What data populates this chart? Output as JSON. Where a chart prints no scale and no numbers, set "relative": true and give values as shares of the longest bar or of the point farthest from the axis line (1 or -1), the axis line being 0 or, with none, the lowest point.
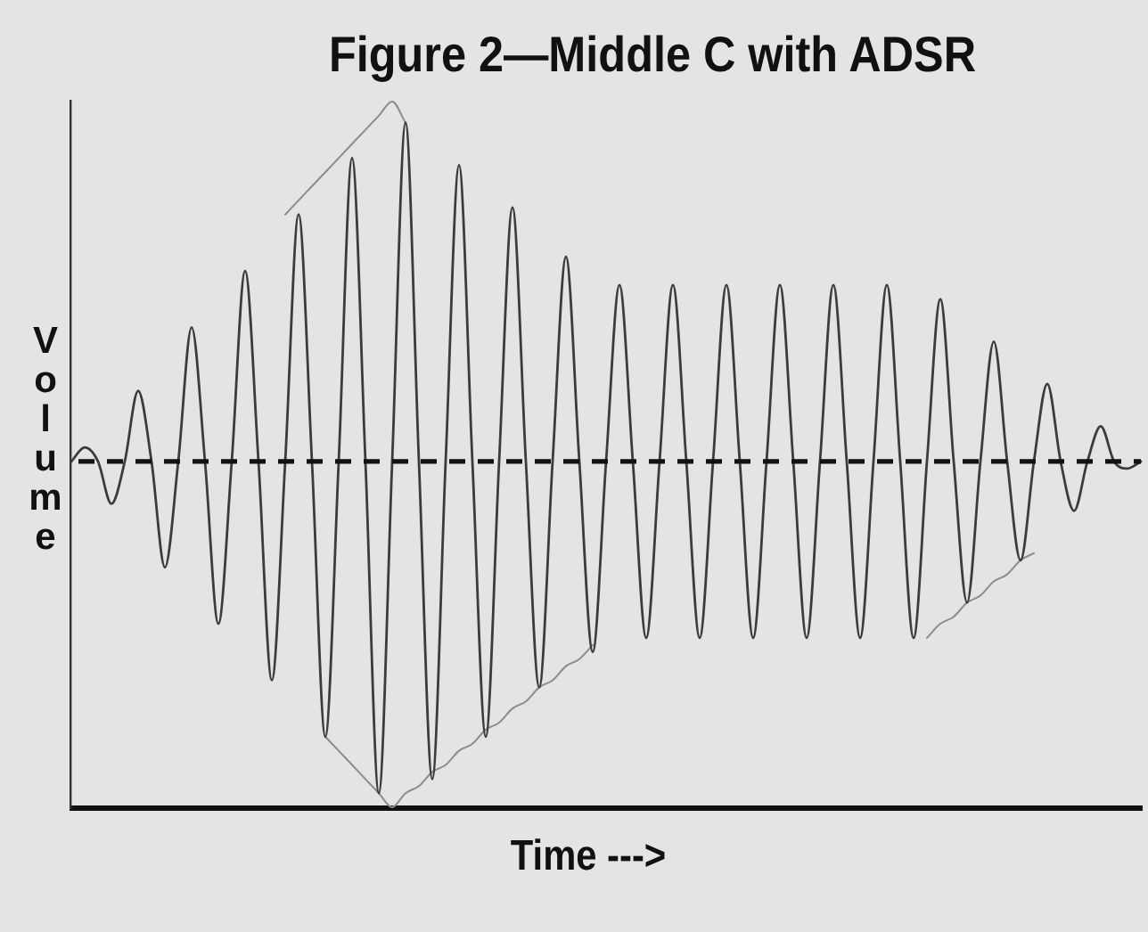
{
  "chart_data": {
    "type": "line",
    "title": "Figure 2—Middle C with ADSR",
    "xlabel": "Time --->",
    "ylabel": "Volume",
    "relative": true,
    "marker": "none",
    "grid": false,
    "legend": false,
    "categories": [
      null,
      null,
      null,
      null,
      null,
      null,
      null,
      null,
      null,
      null,
      null,
      null,
      null,
      null,
      null,
      null,
      null,
      null,
      null,
      null,
      null,
      null,
      null,
      null,
      null,
      null,
      null,
      null,
      null,
      null,
      null,
      null,
      null,
      null,
      null,
      null,
      null,
      null,
      null,
      null,
      null,
      null,
      null,
      null,
      null,
      null,
      null,
      null,
      null,
      null,
      null,
      null,
      null,
      null,
      null,
      null,
      null,
      null,
      null,
      null,
      null,
      null,
      null,
      null,
      null,
      null,
      null,
      null,
      null,
      null,
      null,
      null,
      null,
      null,
      null,
      null,
      null,
      null,
      null,
      null,
      null
    ],
    "series": [
      {
        "color": "#3c3c3c",
        "values": [
          0.49,
          0.51,
          0.49,
          0.43,
          0.49,
          0.59,
          0.49,
          0.34,
          0.49,
          0.68,
          0.49,
          0.26,
          0.49,
          0.76,
          0.49,
          0.18,
          0.49,
          0.84,
          0.49,
          0.1,
          0.49,
          0.92,
          0.49,
          0.02,
          0.49,
          0.97,
          0.49,
          0.04,
          0.49,
          0.91,
          0.49,
          0.1,
          0.49,
          0.85,
          0.49,
          0.17,
          0.49,
          0.78,
          0.49,
          0.22,
          0.49,
          0.74,
          0.49,
          0.24,
          0.49,
          0.74,
          0.49,
          0.24,
          0.49,
          0.74,
          0.49,
          0.24,
          0.49,
          0.74,
          0.49,
          0.24,
          0.49,
          0.74,
          0.49,
          0.24,
          0.49,
          0.74,
          0.49,
          0.24,
          0.49,
          0.72,
          0.49,
          0.29,
          0.49,
          0.66,
          0.49,
          0.35,
          0.49,
          0.6,
          0.49,
          0.42,
          0.49,
          0.54,
          0.49,
          0.48,
          0.49
        ]
      },
      {
        "color": "#8c8c8c",
        "values": [
          null,
          null,
          null,
          null,
          null,
          null,
          null,
          null,
          null,
          null,
          null,
          null,
          null,
          null,
          null,
          null,
          0.84,
          0.86,
          0.88,
          0.9,
          0.92,
          0.94,
          0.96,
          0.98,
          1,
          0.97,
          null,
          null,
          null,
          null,
          null,
          null,
          null,
          null,
          null,
          null,
          null,
          null,
          null,
          null,
          null,
          null,
          null,
          null,
          null,
          null,
          null,
          null,
          null,
          null,
          null,
          null,
          null,
          null,
          null,
          null,
          null,
          null,
          null,
          null,
          null,
          null,
          null,
          null,
          null,
          null,
          null,
          null,
          null,
          null,
          null,
          null,
          null,
          null,
          null,
          null,
          null,
          null,
          null,
          null,
          null
        ]
      },
      {
        "color": "#8c8c8c",
        "values": [
          null,
          null,
          null,
          null,
          null,
          null,
          null,
          null,
          null,
          null,
          null,
          null,
          null,
          null,
          null,
          null,
          null,
          null,
          null,
          0.1,
          0.08,
          0.06,
          0.04,
          0.02,
          0,
          0.02,
          0.03,
          0.05,
          0.06,
          0.08,
          0.09,
          0.11,
          0.12,
          0.14,
          0.15,
          0.17,
          0.18,
          0.2,
          0.21,
          0.23,
          null,
          null,
          null,
          null,
          null,
          null,
          null,
          null,
          null,
          null,
          null,
          null,
          null,
          null,
          null,
          null,
          null,
          null,
          null,
          null,
          null,
          null,
          null,
          null,
          0.24,
          0.26,
          0.27,
          0.29,
          0.3,
          0.32,
          0.33,
          0.35,
          0.36,
          null,
          null,
          null,
          null,
          null,
          null,
          null,
          null
        ]
      }
    ],
    "ref_lines": [
      {
        "axis": "y",
        "value": 0.49,
        "line_style": "dashed",
        "color": "#111111"
      }
    ]
  }
}
